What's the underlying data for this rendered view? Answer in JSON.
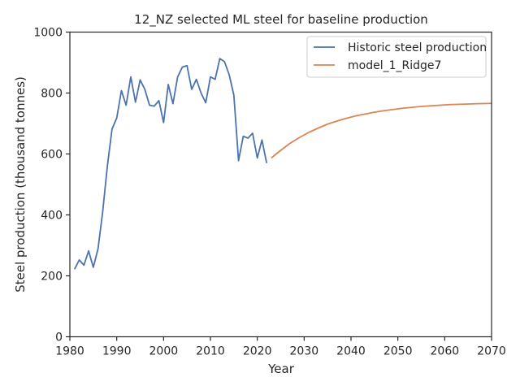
{
  "chart_data": {
    "type": "line",
    "title": "12_NZ selected ML steel for baseline production",
    "xlabel": "Year",
    "ylabel": "Steel production (thousand tonnes)",
    "xlim": [
      1980,
      2070
    ],
    "ylim": [
      0,
      1000
    ],
    "xticks": [
      1980,
      1990,
      2000,
      2010,
      2020,
      2030,
      2040,
      2050,
      2060,
      2070
    ],
    "yticks": [
      0,
      200,
      400,
      600,
      800,
      1000
    ],
    "grid": false,
    "legend_position": "top-right",
    "series": [
      {
        "name": "Historic steel production",
        "color": "#4c72b0",
        "x": [
          1981,
          1982,
          1983,
          1984,
          1985,
          1986,
          1987,
          1988,
          1989,
          1990,
          1991,
          1992,
          1993,
          1994,
          1995,
          1996,
          1997,
          1998,
          1999,
          2000,
          2001,
          2002,
          2003,
          2004,
          2005,
          2006,
          2007,
          2008,
          2009,
          2010,
          2011,
          2012,
          2013,
          2014,
          2015,
          2016,
          2017,
          2018,
          2019,
          2020,
          2021,
          2022
        ],
        "y": [
          222,
          252,
          235,
          282,
          228,
          288,
          410,
          560,
          682,
          718,
          808,
          760,
          853,
          770,
          843,
          812,
          760,
          757,
          775,
          703,
          828,
          765,
          853,
          885,
          890,
          812,
          845,
          800,
          768,
          853,
          845,
          913,
          903,
          860,
          793,
          578,
          658,
          652,
          668,
          587,
          646,
          570
        ]
      },
      {
        "name": "model_1_Ridge7",
        "color": "#dd8452",
        "x": [
          2023,
          2025,
          2027,
          2029,
          2031,
          2033,
          2035,
          2037,
          2039,
          2041,
          2043,
          2045,
          2047,
          2049,
          2051,
          2053,
          2055,
          2057,
          2059,
          2061,
          2063,
          2065,
          2067,
          2070
        ],
        "y": [
          587,
          612,
          635,
          654,
          671,
          685,
          698,
          708,
          717,
          725,
          731,
          737,
          742,
          746,
          750,
          753,
          756,
          758,
          760,
          762,
          763,
          764,
          765,
          766
        ]
      }
    ]
  }
}
